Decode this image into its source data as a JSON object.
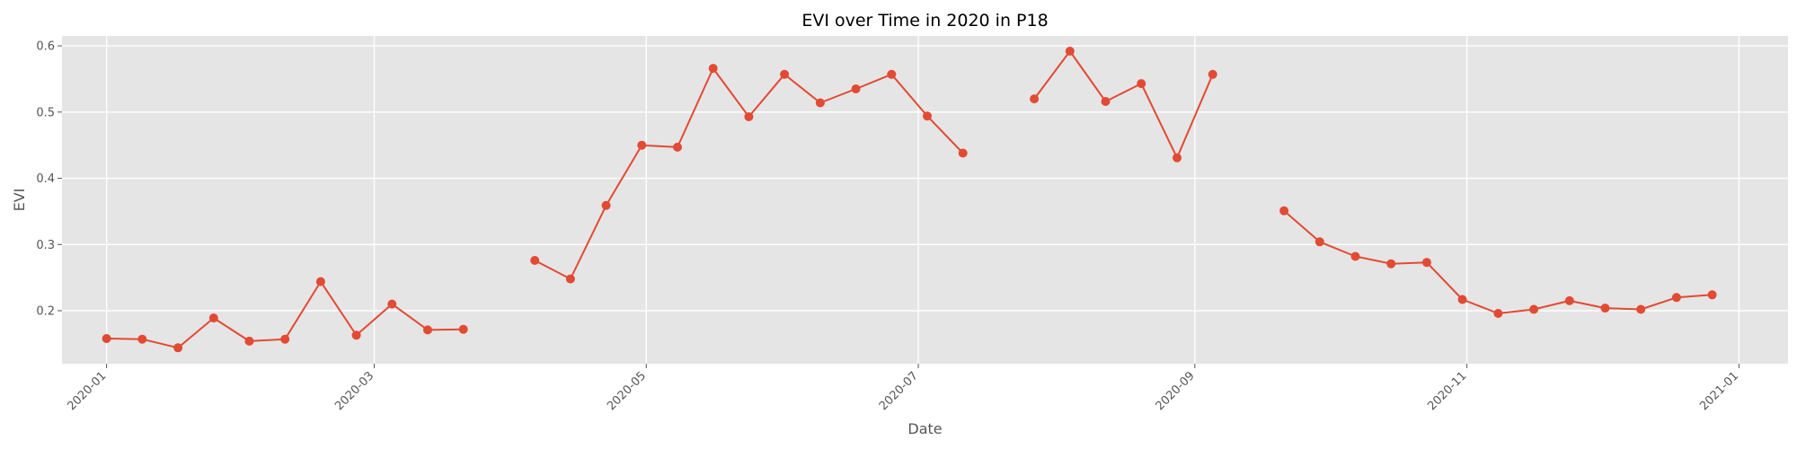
{
  "chart_data": {
    "type": "line",
    "title": "EVI over Time in 2020 in P18",
    "xlabel": "Date",
    "ylabel": "EVI",
    "x_ticks": [
      "2020-01-01",
      "2020-03-01",
      "2020-05-01",
      "2020-07-01",
      "2020-09-01",
      "2020-11-01",
      "2021-01-01"
    ],
    "x_tick_labels": [
      "2020-01",
      "2020-03",
      "2020-05",
      "2020-07",
      "2020-09",
      "2020-11",
      "2021-01"
    ],
    "y_ticks": [
      0.2,
      0.3,
      0.4,
      0.5,
      0.6
    ],
    "y_tick_labels": [
      "0.2",
      "0.3",
      "0.4",
      "0.5",
      "0.6"
    ],
    "xlim": [
      "2019-12-22",
      "2021-01-12"
    ],
    "ylim": [
      0.12,
      0.615
    ],
    "grid": true,
    "colors": {
      "series": "#E24A33",
      "plot_background": "#E5E5E5",
      "grid": "#FFFFFF"
    },
    "series": [
      {
        "segments": [
          [
            {
              "x": "2020-01-01",
              "y": 0.158
            },
            {
              "x": "2020-01-09",
              "y": 0.157
            },
            {
              "x": "2020-01-17",
              "y": 0.144
            },
            {
              "x": "2020-01-25",
              "y": 0.189
            },
            {
              "x": "2020-02-02",
              "y": 0.154
            },
            {
              "x": "2020-02-10",
              "y": 0.157
            },
            {
              "x": "2020-02-18",
              "y": 0.244
            },
            {
              "x": "2020-02-26",
              "y": 0.163
            },
            {
              "x": "2020-03-05",
              "y": 0.21
            },
            {
              "x": "2020-03-13",
              "y": 0.171
            },
            {
              "x": "2020-03-21",
              "y": 0.172
            }
          ],
          [
            {
              "x": "2020-04-06",
              "y": 0.276
            },
            {
              "x": "2020-04-14",
              "y": 0.248
            },
            {
              "x": "2020-04-22",
              "y": 0.359
            },
            {
              "x": "2020-04-30",
              "y": 0.45
            },
            {
              "x": "2020-05-08",
              "y": 0.447
            },
            {
              "x": "2020-05-16",
              "y": 0.566
            },
            {
              "x": "2020-05-24",
              "y": 0.493
            },
            {
              "x": "2020-06-01",
              "y": 0.557
            },
            {
              "x": "2020-06-09",
              "y": 0.514
            },
            {
              "x": "2020-06-17",
              "y": 0.535
            },
            {
              "x": "2020-06-25",
              "y": 0.557
            },
            {
              "x": "2020-07-03",
              "y": 0.494
            },
            {
              "x": "2020-07-11",
              "y": 0.438
            }
          ],
          [
            {
              "x": "2020-07-27",
              "y": 0.52
            },
            {
              "x": "2020-08-04",
              "y": 0.592
            },
            {
              "x": "2020-08-12",
              "y": 0.516
            },
            {
              "x": "2020-08-20",
              "y": 0.543
            },
            {
              "x": "2020-08-28",
              "y": 0.431
            },
            {
              "x": "2020-09-05",
              "y": 0.557
            }
          ],
          [
            {
              "x": "2020-09-21",
              "y": 0.351
            },
            {
              "x": "2020-09-29",
              "y": 0.304
            },
            {
              "x": "2020-10-07",
              "y": 0.282
            },
            {
              "x": "2020-10-15",
              "y": 0.271
            },
            {
              "x": "2020-10-23",
              "y": 0.273
            },
            {
              "x": "2020-10-31",
              "y": 0.217
            },
            {
              "x": "2020-11-08",
              "y": 0.196
            },
            {
              "x": "2020-11-16",
              "y": 0.202
            },
            {
              "x": "2020-11-24",
              "y": 0.215
            },
            {
              "x": "2020-12-02",
              "y": 0.204
            },
            {
              "x": "2020-12-10",
              "y": 0.202
            },
            {
              "x": "2020-12-18",
              "y": 0.22
            },
            {
              "x": "2020-12-26",
              "y": 0.224
            }
          ]
        ]
      }
    ]
  }
}
